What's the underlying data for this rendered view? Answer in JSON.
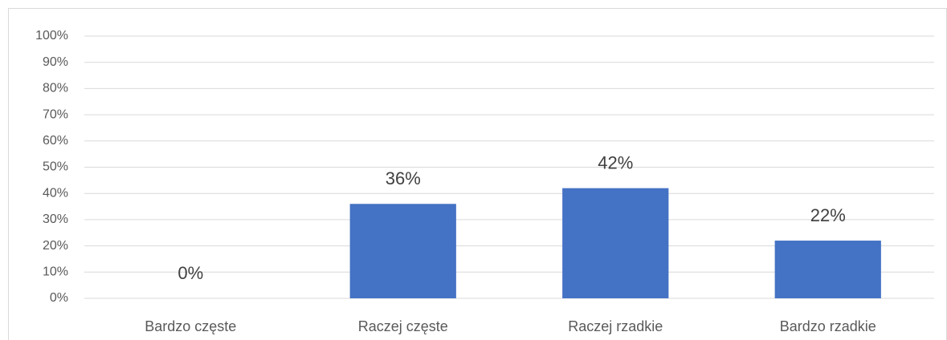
{
  "chart_data": {
    "type": "bar",
    "categories": [
      "Bardzo częste",
      "Raczej częste",
      "Raczej rzadkie",
      "Bardzo rzadkie"
    ],
    "values": [
      0,
      36,
      42,
      22
    ],
    "value_labels": [
      "0%",
      "36%",
      "42%",
      "22%"
    ],
    "color": "#4472c4",
    "ylim": [
      0,
      100
    ],
    "yticks": [
      {
        "value": 0,
        "label": "0%"
      },
      {
        "value": 10,
        "label": "10%"
      },
      {
        "value": 20,
        "label": "20%"
      },
      {
        "value": 30,
        "label": "30%"
      },
      {
        "value": 40,
        "label": "40%"
      },
      {
        "value": 50,
        "label": "50%"
      },
      {
        "value": 60,
        "label": "60%"
      },
      {
        "value": 70,
        "label": "70%"
      },
      {
        "value": 80,
        "label": "80%"
      },
      {
        "value": 90,
        "label": "90%"
      },
      {
        "value": 100,
        "label": "100%"
      }
    ],
    "grid": true
  }
}
